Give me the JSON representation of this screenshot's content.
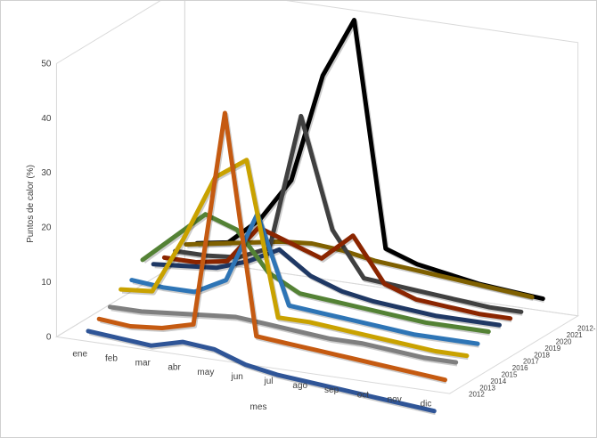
{
  "chart_data": {
    "type": "line",
    "title": "",
    "xlabel": "mes",
    "ylabel": "Puntos de calor (%)",
    "zlabel": "",
    "ylim": [
      0,
      50
    ],
    "y_ticks": [
      "0",
      "10",
      "20",
      "30",
      "40",
      "50"
    ],
    "categories": [
      "ene",
      "feb",
      "mar",
      "abr",
      "may",
      "jun",
      "jul",
      "ago",
      "sep",
      "oct",
      "nov",
      "dic"
    ],
    "series": [
      {
        "name": "2012",
        "color": "#2f5597",
        "values": [
          1,
          0.5,
          0,
          1.5,
          1,
          -1,
          -2,
          -2.5,
          -3,
          -3.5,
          -4,
          -4.5
        ]
      },
      {
        "name": "2013",
        "color": "#c55a11",
        "values": [
          2,
          1.5,
          2,
          3.5,
          43,
          3,
          2.5,
          2,
          1.5,
          1,
          0.5,
          0
        ]
      },
      {
        "name": "2014",
        "color": "#7f7f7f",
        "values": [
          3,
          3,
          3.5,
          4,
          4.5,
          4,
          3.5,
          3,
          3,
          2.5,
          2,
          2
        ]
      },
      {
        "name": "2015",
        "color": "#c9a200",
        "values": [
          5,
          5.5,
          16,
          28,
          32,
          4,
          4,
          3.5,
          3,
          2.5,
          2,
          2
        ]
      },
      {
        "name": "2016",
        "color": "#2e75b6",
        "values": [
          5.5,
          5,
          5,
          8,
          21,
          5,
          4.5,
          4,
          3.5,
          3,
          3,
          3
        ]
      },
      {
        "name": "2017",
        "color": "#548235",
        "values": [
          8,
          13,
          18,
          16,
          9,
          6,
          5.5,
          5,
          4.5,
          4,
          4,
          4
        ]
      },
      {
        "name": "2018",
        "color": "#1f3864",
        "values": [
          6,
          6.5,
          7,
          9,
          12,
          8,
          6,
          5,
          4.5,
          4,
          4,
          4
        ]
      },
      {
        "name": "2019",
        "color": "#8b2500",
        "values": [
          6,
          6,
          7,
          14,
          12,
          10,
          15,
          7,
          5,
          4.5,
          4,
          4
        ]
      },
      {
        "name": "2020",
        "color": "#404040",
        "values": [
          6,
          6,
          6.5,
          9,
          34,
          14,
          6,
          5.5,
          5,
          4.5,
          4,
          4
        ]
      },
      {
        "name": "2021",
        "color": "#7f6000",
        "values": [
          6,
          7,
          8,
          9,
          9.5,
          9,
          8,
          7.5,
          7,
          6.5,
          6,
          5.5
        ]
      },
      {
        "name": "2012-2021",
        "color": "#000000",
        "values": [
          5,
          6,
          11,
          19,
          39,
          50,
          9,
          7,
          6,
          5,
          4.5,
          4
        ]
      }
    ],
    "grid": false,
    "legend": "none"
  }
}
